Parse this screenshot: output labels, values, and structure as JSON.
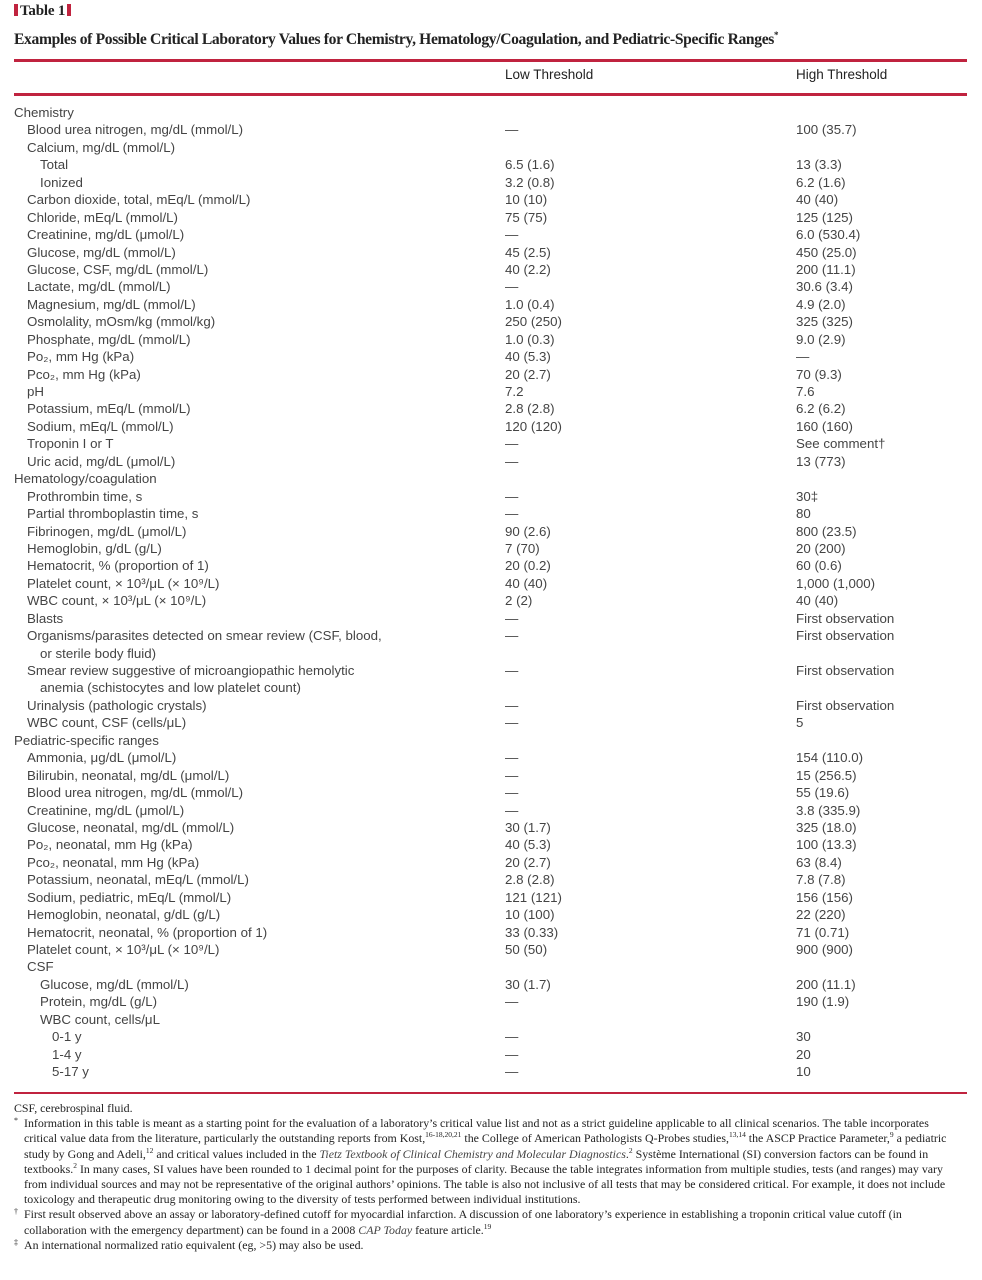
{
  "table_label": "Table 1",
  "title": "Examples of Possible Critical Laboratory Values for Chemistry, Hematology/Coagulation, and Pediatric-Specific Ranges",
  "title_mark": "*",
  "accent_color": "#c0233f",
  "columns": {
    "low": "Low Threshold",
    "high": "High Threshold"
  },
  "rows": [
    {
      "label": "Chemistry",
      "level": 0
    },
    {
      "label": "Blood urea nitrogen, mg/dL (mmol/L)",
      "level": 1,
      "low": "—",
      "high": "100 (35.7)"
    },
    {
      "label": "Calcium, mg/dL (mmol/L)",
      "level": 1
    },
    {
      "label": "Total",
      "level": 2,
      "low": "6.5 (1.6)",
      "high": "13 (3.3)"
    },
    {
      "label": "Ionized",
      "level": 2,
      "low": "3.2 (0.8)",
      "high": "6.2 (1.6)"
    },
    {
      "label": "Carbon dioxide, total, mEq/L (mmol/L)",
      "level": 1,
      "low": "10 (10)",
      "high": "40 (40)"
    },
    {
      "label": "Chloride, mEq/L (mmol/L)",
      "level": 1,
      "low": "75 (75)",
      "high": "125 (125)"
    },
    {
      "label": "Creatinine, mg/dL (μmol/L)",
      "level": 1,
      "low": "—",
      "high": "6.0 (530.4)"
    },
    {
      "label": "Glucose, mg/dL (mmol/L)",
      "level": 1,
      "low": "45 (2.5)",
      "high": "450 (25.0)"
    },
    {
      "label": "Glucose, CSF, mg/dL (mmol/L)",
      "level": 1,
      "low": "40 (2.2)",
      "high": "200 (11.1)"
    },
    {
      "label": "Lactate, mg/dL (mmol/L)",
      "level": 1,
      "low": "—",
      "high": "30.6 (3.4)"
    },
    {
      "label": "Magnesium, mg/dL (mmol/L)",
      "level": 1,
      "low": "1.0 (0.4)",
      "high": "4.9 (2.0)"
    },
    {
      "label": "Osmolality, mOsm/kg (mmol/kg)",
      "level": 1,
      "low": "250 (250)",
      "high": "325 (325)"
    },
    {
      "label": "Phosphate, mg/dL (mmol/L)",
      "level": 1,
      "low": "1.0 (0.3)",
      "high": "9.0 (2.9)"
    },
    {
      "label": "Po₂, mm Hg (kPa)",
      "level": 1,
      "low": "40 (5.3)",
      "high": "—"
    },
    {
      "label": "Pco₂, mm Hg (kPa)",
      "level": 1,
      "low": "20 (2.7)",
      "high": "70 (9.3)"
    },
    {
      "label": "pH",
      "level": 1,
      "low": " 7.2",
      "high": "7.6"
    },
    {
      "label": "Potassium, mEq/L (mmol/L)",
      "level": 1,
      "low": " 2.8 (2.8)",
      "high": "6.2 (6.2)"
    },
    {
      "label": "Sodium, mEq/L (mmol/L)",
      "level": 1,
      "low": "120 (120)",
      "high": "160 (160)"
    },
    {
      "label": "Troponin I or T",
      "level": 1,
      "low": "—",
      "high": " See comment†"
    },
    {
      "label": "Uric acid, mg/dL (μmol/L)",
      "level": 1,
      "low": "—",
      "high": "13 (773)"
    },
    {
      "label": "Hematology/coagulation",
      "level": 0
    },
    {
      "label": "Prothrombin time, s",
      "level": 1,
      "low": "—",
      "high": "30‡"
    },
    {
      "label": "Partial thromboplastin time, s",
      "level": 1,
      "low": "—",
      "high": "80"
    },
    {
      "label": "Fibrinogen, mg/dL (μmol/L)",
      "level": 1,
      "low": "90 (2.6)",
      "high": "800 (23.5)"
    },
    {
      "label": "Hemoglobin, g/dL (g/L)",
      "level": 1,
      "low": "7 (70)",
      "high": "20 (200)"
    },
    {
      "label": "Hematocrit, % (proportion of 1)",
      "level": 1,
      "low": "20 (0.2)",
      "high": "60 (0.6)"
    },
    {
      "label": "Platelet count, × 10³/μL (× 10⁹/L)",
      "level": 1,
      "low": "40 (40)",
      "high": "1,000 (1,000)"
    },
    {
      "label": "WBC count, × 10³/μL (× 10⁹/L)",
      "level": 1,
      "low": "2 (2)",
      "high": "40 (40)"
    },
    {
      "label": "Blasts",
      "level": 1,
      "low": "—",
      "high": "First observation"
    },
    {
      "label": "Organisms/parasites detected on smear review (CSF, blood,",
      "label_cont": "or sterile body fluid)",
      "level": 1,
      "low": "—",
      "high": "First observation"
    },
    {
      "label": "Smear review suggestive of microangiopathic hemolytic",
      "label_cont": "anemia (schistocytes and low platelet count)",
      "level": 1,
      "low": "—",
      "high": "First observation"
    },
    {
      "label": "Urinalysis (pathologic crystals)",
      "level": 1,
      "low": "—",
      "high": "First observation"
    },
    {
      "label": "WBC count, CSF (cells/μL)",
      "level": 1,
      "low": "—",
      "high": "5"
    },
    {
      "label": "Pediatric-specific ranges",
      "level": 0
    },
    {
      "label": "Ammonia, μg/dL (μmol/L)",
      "level": 1,
      "low": "—",
      "high": "154 (110.0)"
    },
    {
      "label": "Bilirubin, neonatal, mg/dL (μmol/L)",
      "level": 1,
      "low": "—",
      "high": "15 (256.5)"
    },
    {
      "label": "Blood urea nitrogen, mg/dL (mmol/L)",
      "level": 1,
      "low": "—",
      "high": "55 (19.6)"
    },
    {
      "label": "Creatinine, mg/dL (μmol/L)",
      "level": 1,
      "low": "—",
      "high": "3.8 (335.9)"
    },
    {
      "label": "Glucose, neonatal, mg/dL (mmol/L)",
      "level": 1,
      "low": "30 (1.7)",
      "high": "325 (18.0)"
    },
    {
      "label": "Po₂, neonatal, mm Hg (kPa)",
      "level": 1,
      "low": "40 (5.3)",
      "high": "100 (13.3)"
    },
    {
      "label": "Pco₂, neonatal, mm Hg (kPa)",
      "level": 1,
      "low": "20 (2.7)",
      "high": "63 (8.4)"
    },
    {
      "label": "Potassium, neonatal, mEq/L (mmol/L)",
      "level": 1,
      "low": "2.8 (2.8)",
      "high": "7.8 (7.8)"
    },
    {
      "label": "Sodium, pediatric, mEq/L (mmol/L)",
      "level": 1,
      "low": "121 (121)",
      "high": "156 (156)"
    },
    {
      "label": "Hemoglobin, neonatal, g/dL (g/L)",
      "level": 1,
      "low": "10 (100)",
      "high": "22 (220)"
    },
    {
      "label": "Hematocrit, neonatal, % (proportion of 1)",
      "level": 1,
      "low": "33 (0.33)",
      "high": "71 (0.71)"
    },
    {
      "label": "Platelet count, × 10³/μL (× 10⁹/L)",
      "level": 1,
      "low": "50 (50)",
      "high": "900 (900)"
    },
    {
      "label": "CSF",
      "level": 1
    },
    {
      "label": "Glucose, mg/dL (mmol/L)",
      "level": 2,
      "low": "30 (1.7)",
      "high": "200 (11.1)"
    },
    {
      "label": "Protein, mg/dL (g/L)",
      "level": 2,
      "low": "—",
      "high": "190 (1.9)"
    },
    {
      "label": "WBC count, cells/μL",
      "level": 2
    },
    {
      "label": "0-1 y",
      "level": 3,
      "low": "—",
      "high": "30"
    },
    {
      "label": "1-4 y",
      "level": 3,
      "low": "—",
      "high": "20"
    },
    {
      "label": "5-17 y",
      "level": 3,
      "low": "—",
      "high": "10"
    }
  ],
  "footnotes": [
    {
      "symbol": "",
      "segments": [
        {
          "t": "CSF, cerebrospinal fluid."
        }
      ]
    },
    {
      "symbol": "*",
      "segments": [
        {
          "t": "Information in this table is meant as a starting point for the evaluation of a laboratory’s critical value list and not as a strict guideline applicable to all clinical scenarios. The table incorporates critical value data from the literature, particularly the outstanding reports from Kost,"
        },
        {
          "sup": "16-18,20,21"
        },
        {
          "t": " the College of American Pathologists Q-Probes studies,"
        },
        {
          "sup": "13,14"
        },
        {
          "t": " the ASCP Practice Parameter,"
        },
        {
          "sup": "9"
        },
        {
          "t": " a pediatric study by Gong and Adeli,"
        },
        {
          "sup": "12"
        },
        {
          "t": " and critical values included in the "
        },
        {
          "i": "Tietz Textbook of Clinical Chemistry and Molecular Diagnostics"
        },
        {
          "t": "."
        },
        {
          "sup": "2"
        },
        {
          "t": " Système International (SI) conversion factors can be found in textbooks."
        },
        {
          "sup": "2"
        },
        {
          "t": " In many cases, SI values have been rounded to 1 decimal point for the purposes of clarity. Because the table integrates information from multiple studies, tests (and ranges) may vary from individual sources and may not be representative of the original authors’ opinions. The table is also not inclusive of all tests that may be considered critical. For example, it does not include toxicology and therapeutic drug monitoring owing to the diversity of tests performed between individual institutions."
        }
      ]
    },
    {
      "symbol": "†",
      "segments": [
        {
          "t": "First result observed above an assay or laboratory-defined cutoff for myocardial infarction. A discussion of one laboratory’s experience in establishing a troponin critical value cutoff (in collaboration with the emergency department) can be found in a 2008 "
        },
        {
          "i": "CAP Today"
        },
        {
          "t": " feature article."
        },
        {
          "sup": "19"
        }
      ]
    },
    {
      "symbol": "‡",
      "segments": [
        {
          "t": "An international normalized ratio equivalent (eg, >5) may also be used."
        }
      ]
    }
  ]
}
